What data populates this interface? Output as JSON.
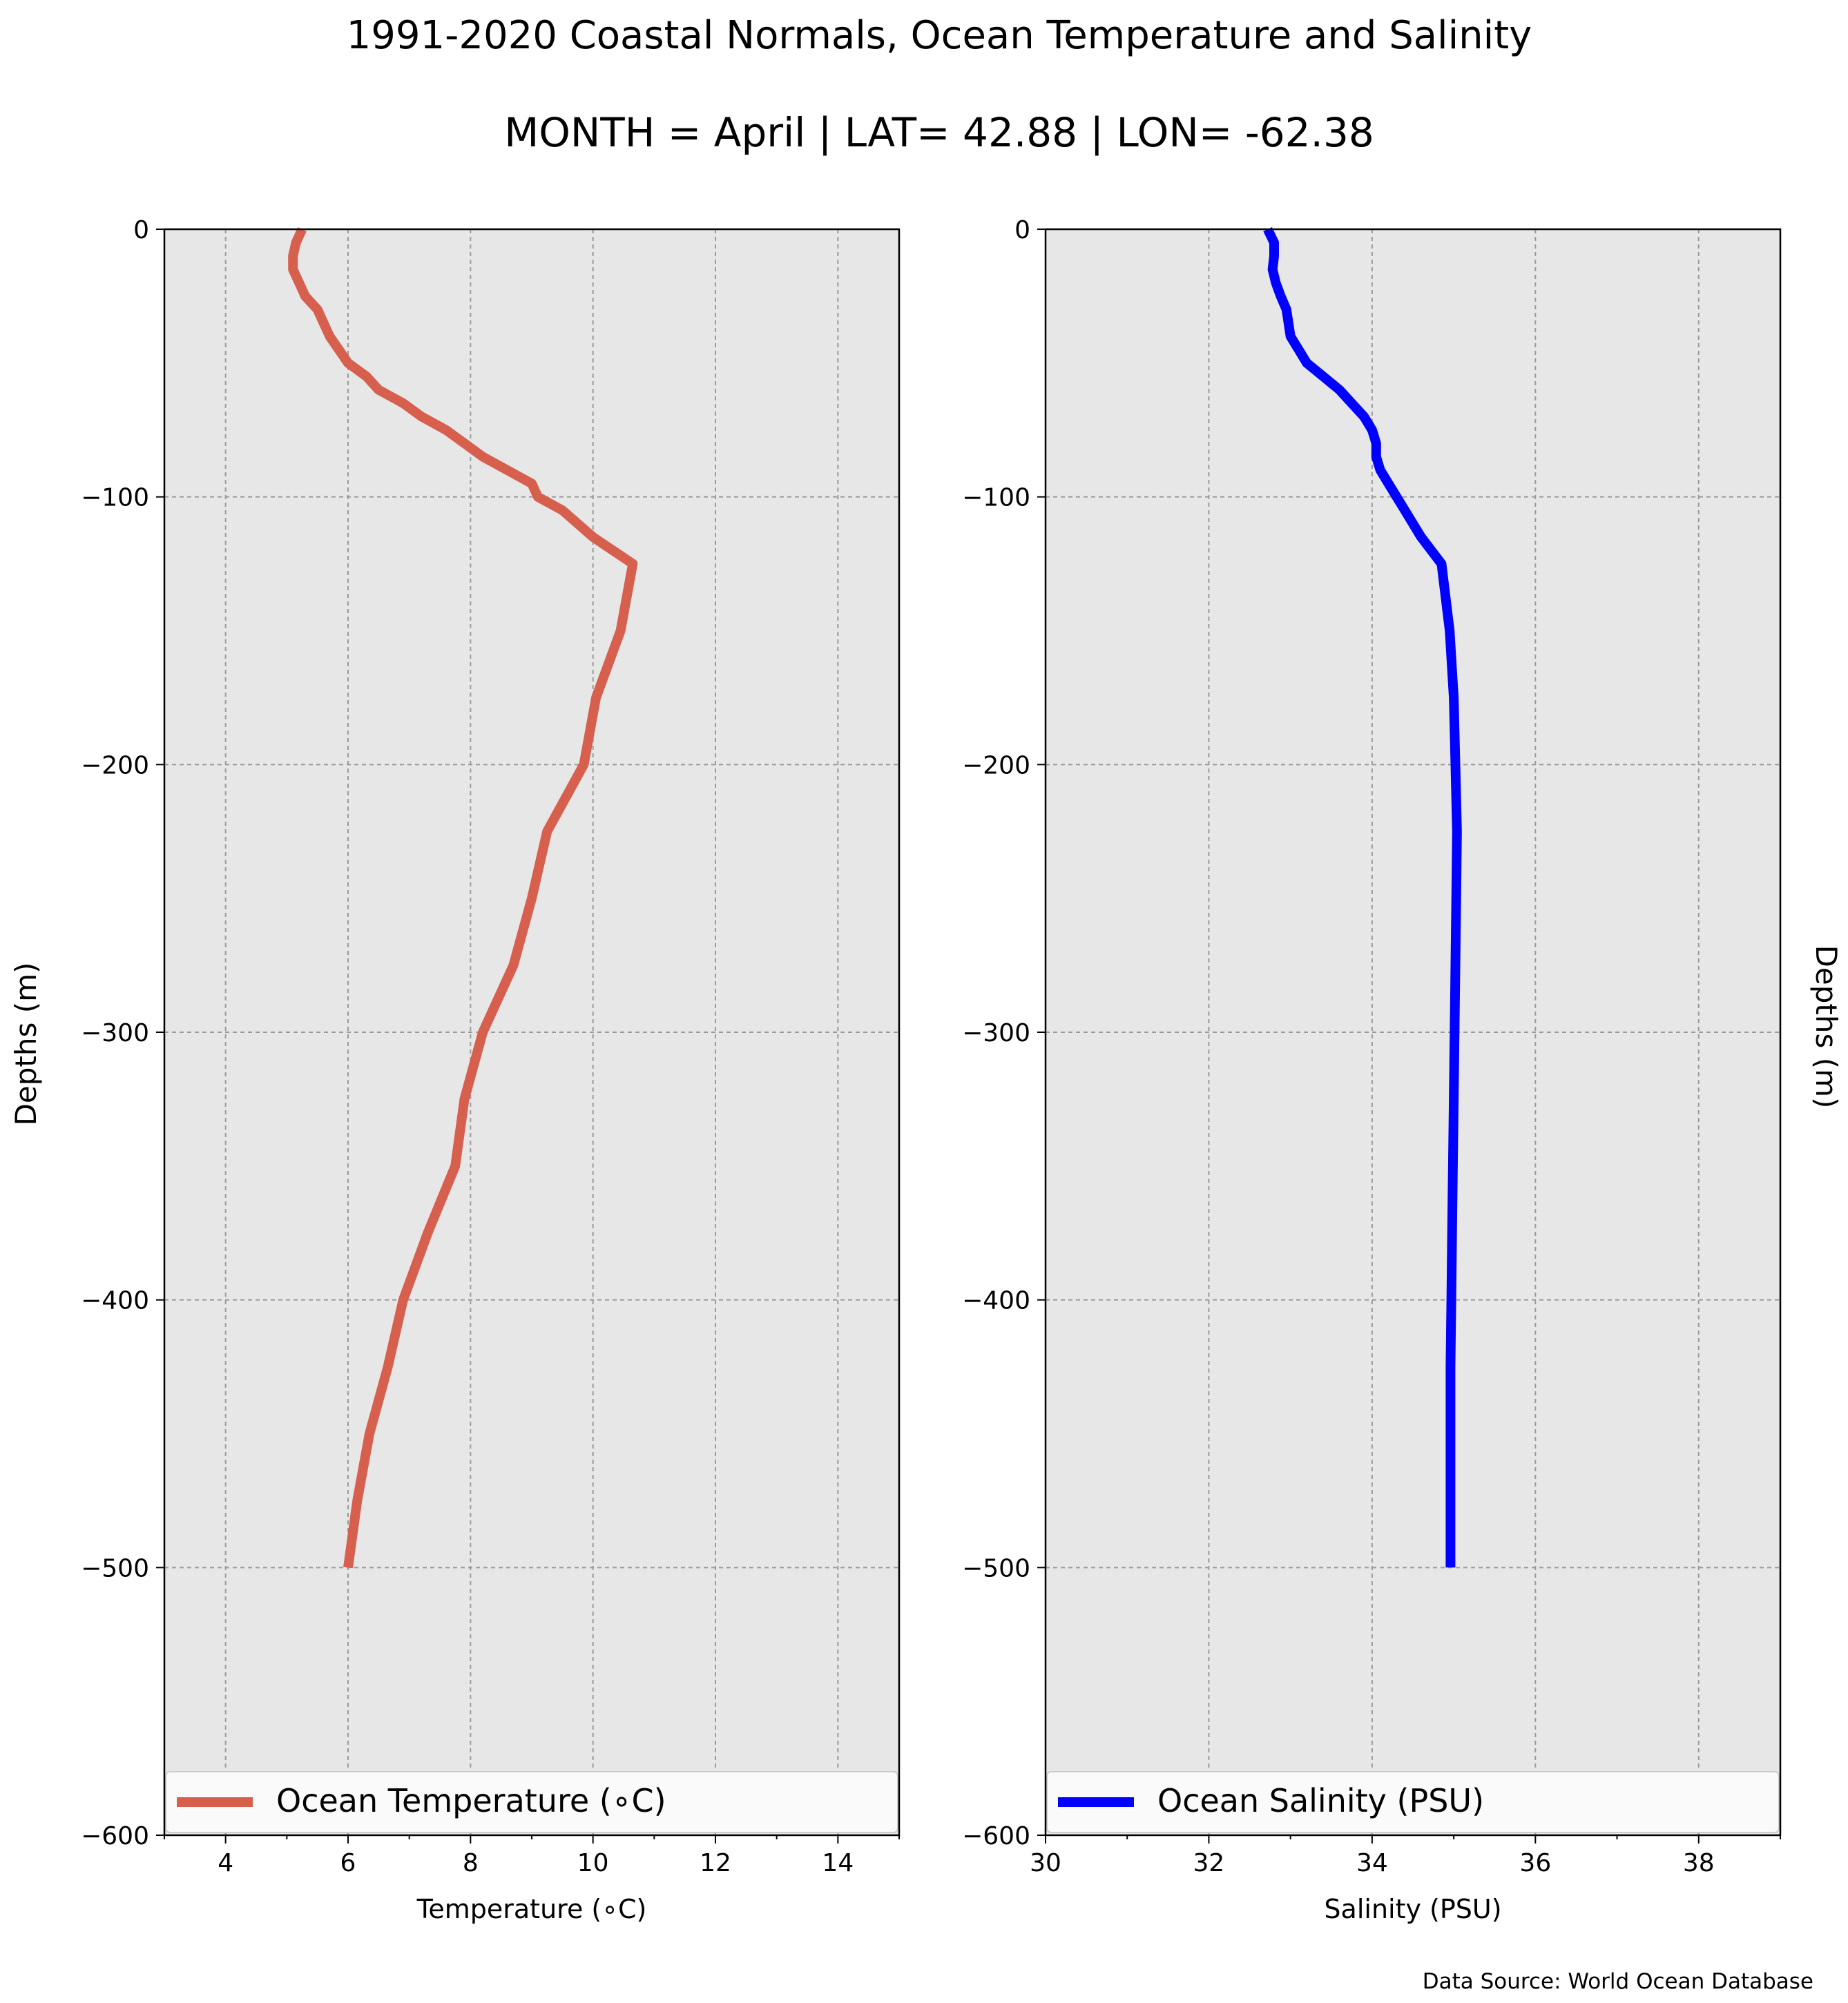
{
  "figure": {
    "title": "1991-2020 Coastal Normals, Ocean Temperature and Salinity",
    "subtitle": "MONTH = April | LAT= 42.88 | LON= -62.38",
    "footer": "Data Source: World Ocean Database"
  },
  "chart_data": [
    {
      "type": "line",
      "xlabel": "Temperature (∘C)",
      "ylabel": "Depths (m)",
      "xlim": [
        3,
        15
      ],
      "ylim": [
        -600,
        0
      ],
      "xticks": [
        "4",
        "6",
        "8",
        "10",
        "12",
        "14"
      ],
      "yticks": [
        "0",
        "−100",
        "−200",
        "−300",
        "−400",
        "−500",
        "−600"
      ],
      "grid": true,
      "legend": "bottom",
      "series": [
        {
          "name": "Ocean Temperature (∘C)",
          "color": "#d65f4e",
          "x": [
            5.25,
            5.15,
            5.1,
            5.1,
            5.2,
            5.3,
            5.5,
            5.7,
            6.0,
            6.3,
            6.5,
            6.9,
            7.2,
            7.6,
            7.9,
            8.2,
            8.6,
            9.0,
            9.1,
            9.5,
            10.0,
            10.65,
            10.45,
            10.05,
            9.85,
            9.25,
            9.0,
            8.7,
            8.2,
            7.9,
            7.75,
            7.3,
            6.9,
            6.65,
            6.35,
            6.15,
            6.0
          ],
          "y": [
            0,
            -5,
            -10,
            -15,
            -20,
            -25,
            -30,
            -40,
            -50,
            -55,
            -60,
            -65,
            -70,
            -75,
            -80,
            -85,
            -90,
            -95,
            -100,
            -105,
            -115,
            -125,
            -150,
            -175,
            -200,
            -225,
            -250,
            -275,
            -300,
            -325,
            -350,
            -375,
            -400,
            -425,
            -450,
            -475,
            -500
          ]
        }
      ]
    },
    {
      "type": "line",
      "xlabel": "Salinity (PSU)",
      "ylabel": "Depths (m)",
      "xlim": [
        30,
        39
      ],
      "ylim": [
        -600,
        0
      ],
      "xticks": [
        "30",
        "32",
        "34",
        "36",
        "38"
      ],
      "yticks": [
        "0",
        "−100",
        "−200",
        "−300",
        "−400",
        "−500",
        "−600"
      ],
      "grid": true,
      "legend": "bottom",
      "series": [
        {
          "name": "Ocean Salinity (PSU)",
          "color": "#0000ff",
          "x": [
            32.72,
            32.8,
            32.8,
            32.78,
            32.82,
            32.88,
            32.95,
            33.0,
            33.1,
            33.2,
            33.4,
            33.6,
            33.75,
            33.9,
            34.0,
            34.05,
            34.05,
            34.1,
            34.2,
            34.4,
            34.6,
            34.85,
            34.95,
            35.0,
            35.02,
            35.04,
            35.03,
            35.02,
            35.01,
            35.0,
            34.99,
            34.98,
            34.97,
            34.96,
            34.96,
            34.96,
            34.96
          ],
          "y": [
            0,
            -5,
            -10,
            -15,
            -20,
            -25,
            -30,
            -40,
            -45,
            -50,
            -55,
            -60,
            -65,
            -70,
            -75,
            -80,
            -85,
            -90,
            -95,
            -105,
            -115,
            -125,
            -150,
            -175,
            -200,
            -225,
            -250,
            -275,
            -300,
            -325,
            -350,
            -375,
            -400,
            -425,
            -450,
            -475,
            -500
          ]
        }
      ]
    }
  ]
}
